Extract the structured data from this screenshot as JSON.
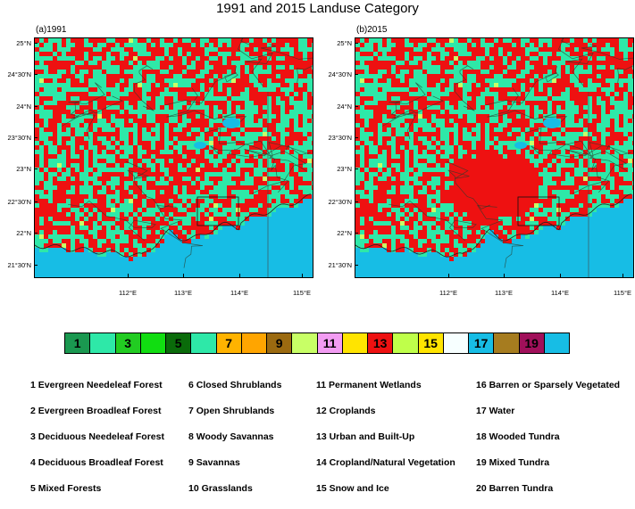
{
  "title": "1991 and 2015 Landuse Category",
  "panels": [
    {
      "label": "(a)1991",
      "urban_extent": "small"
    },
    {
      "label": "(b)2015",
      "urban_extent": "large"
    }
  ],
  "lat_ticks": [
    "25°N",
    "24°30'N",
    "24°N",
    "23°30'N",
    "23°N",
    "22°30'N",
    "22°N",
    "21°30'N"
  ],
  "lon_ticks": [
    "112°E",
    "113°E",
    "114°E",
    "115°E"
  ],
  "colorbar": {
    "labels": [
      "1",
      "",
      "3",
      "",
      "5",
      "",
      "7",
      "",
      "9",
      "",
      "11",
      "",
      "13",
      "",
      "15",
      "",
      "17",
      "",
      "19",
      ""
    ],
    "colors": [
      "#1a9850",
      "#2ee8a8",
      "#22cc22",
      "#11dd11",
      "#0a6b0a",
      "#2ee8a8",
      "#ffb300",
      "#ffa500",
      "#9b6a10",
      "#c8ff66",
      "#f29cf2",
      "#ffe400",
      "#ee1111",
      "#bfff4a",
      "#ffe400",
      "#f7ffff",
      "#17bde5",
      "#a67c1f",
      "#a0105a",
      "#17bde5"
    ]
  },
  "legend": [
    [
      "1 Evergreen Needeleaf Forest",
      "2 Evergreen Broadleaf Forest",
      "3 Deciduous Needeleaf Forest",
      "4 Deciduous Broadleaf Forest",
      "5 Mixed Forests"
    ],
    [
      "6 Closed Shrublands",
      "7 Open Shrublands",
      "8 Woody Savannas",
      "9 Savannas",
      "10 Grasslands"
    ],
    [
      "11 Permanent Wetlands",
      "12 Croplands",
      "13 Urban and Built-Up",
      "14 Cropland/Natural Vegetation",
      "15 Snow and Ice"
    ],
    [
      "16 Barren or Sparsely Vegetated",
      "17 Water",
      "18 Wooded Tundra",
      "19 Mixed Tundra",
      "20 Barren Tundra"
    ]
  ]
}
